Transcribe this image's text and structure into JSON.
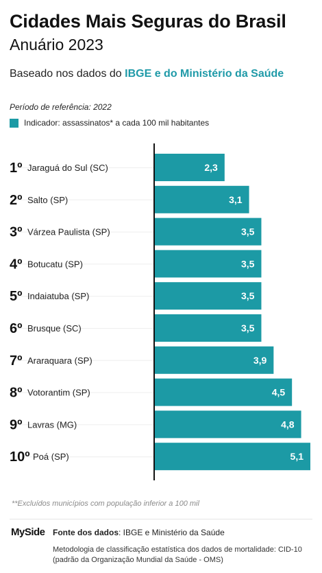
{
  "header": {
    "title": "Cidades Mais Seguras do Brasil",
    "subtitle": "Anuário 2023",
    "based_prefix": "Baseado nos dados do ",
    "based_highlight": "IBGE e do Ministério da Saúde",
    "period": "Período de referência: 2022",
    "legend": "Indicador: assassinatos* a cada 100 mil habitantes"
  },
  "colors": {
    "bar": "#1c9aa5",
    "accent_text": "#1f9aa8",
    "axis": "#111111"
  },
  "chart_data": {
    "type": "bar",
    "orientation": "horizontal",
    "legend_entry": "Indicador: assassinatos* a cada 100 mil habitantes",
    "categories": [
      {
        "rank": "1º",
        "city": "Jaraguá do Sul (SC)"
      },
      {
        "rank": "2º",
        "city": "Salto (SP)"
      },
      {
        "rank": "3º",
        "city": "Várzea Paulista (SP)"
      },
      {
        "rank": "4º",
        "city": "Botucatu (SP)"
      },
      {
        "rank": "5º",
        "city": "Indaiatuba (SP)"
      },
      {
        "rank": "6º",
        "city": "Brusque (SC)"
      },
      {
        "rank": "7º",
        "city": "Araraquara (SP)"
      },
      {
        "rank": "8º",
        "city": "Votorantim (SP)"
      },
      {
        "rank": "9º",
        "city": "Lavras (MG)"
      },
      {
        "rank": "10º",
        "city": "Poá (SP)"
      }
    ],
    "values": [
      2.3,
      3.1,
      3.5,
      3.5,
      3.5,
      3.5,
      3.9,
      4.5,
      4.8,
      5.1
    ],
    "value_labels": [
      "2,3",
      "3,1",
      "3,5",
      "3,5",
      "3,5",
      "3,5",
      "3,9",
      "4,5",
      "4,8",
      "5,1"
    ],
    "xlim": [
      0,
      5.1
    ],
    "grid": false
  },
  "footer": {
    "note": "**Excluídos municípios com população inferior a 100 mil",
    "logo": "MySide",
    "source_label": "Fonte dos dados",
    "source_value": ": IBGE e Ministério da Saúde",
    "methodology": "Metodologia de classificação estatística dos dados de mortalidade: CID-10 (padrão da Organização Mundial da Saúde - OMS)"
  }
}
